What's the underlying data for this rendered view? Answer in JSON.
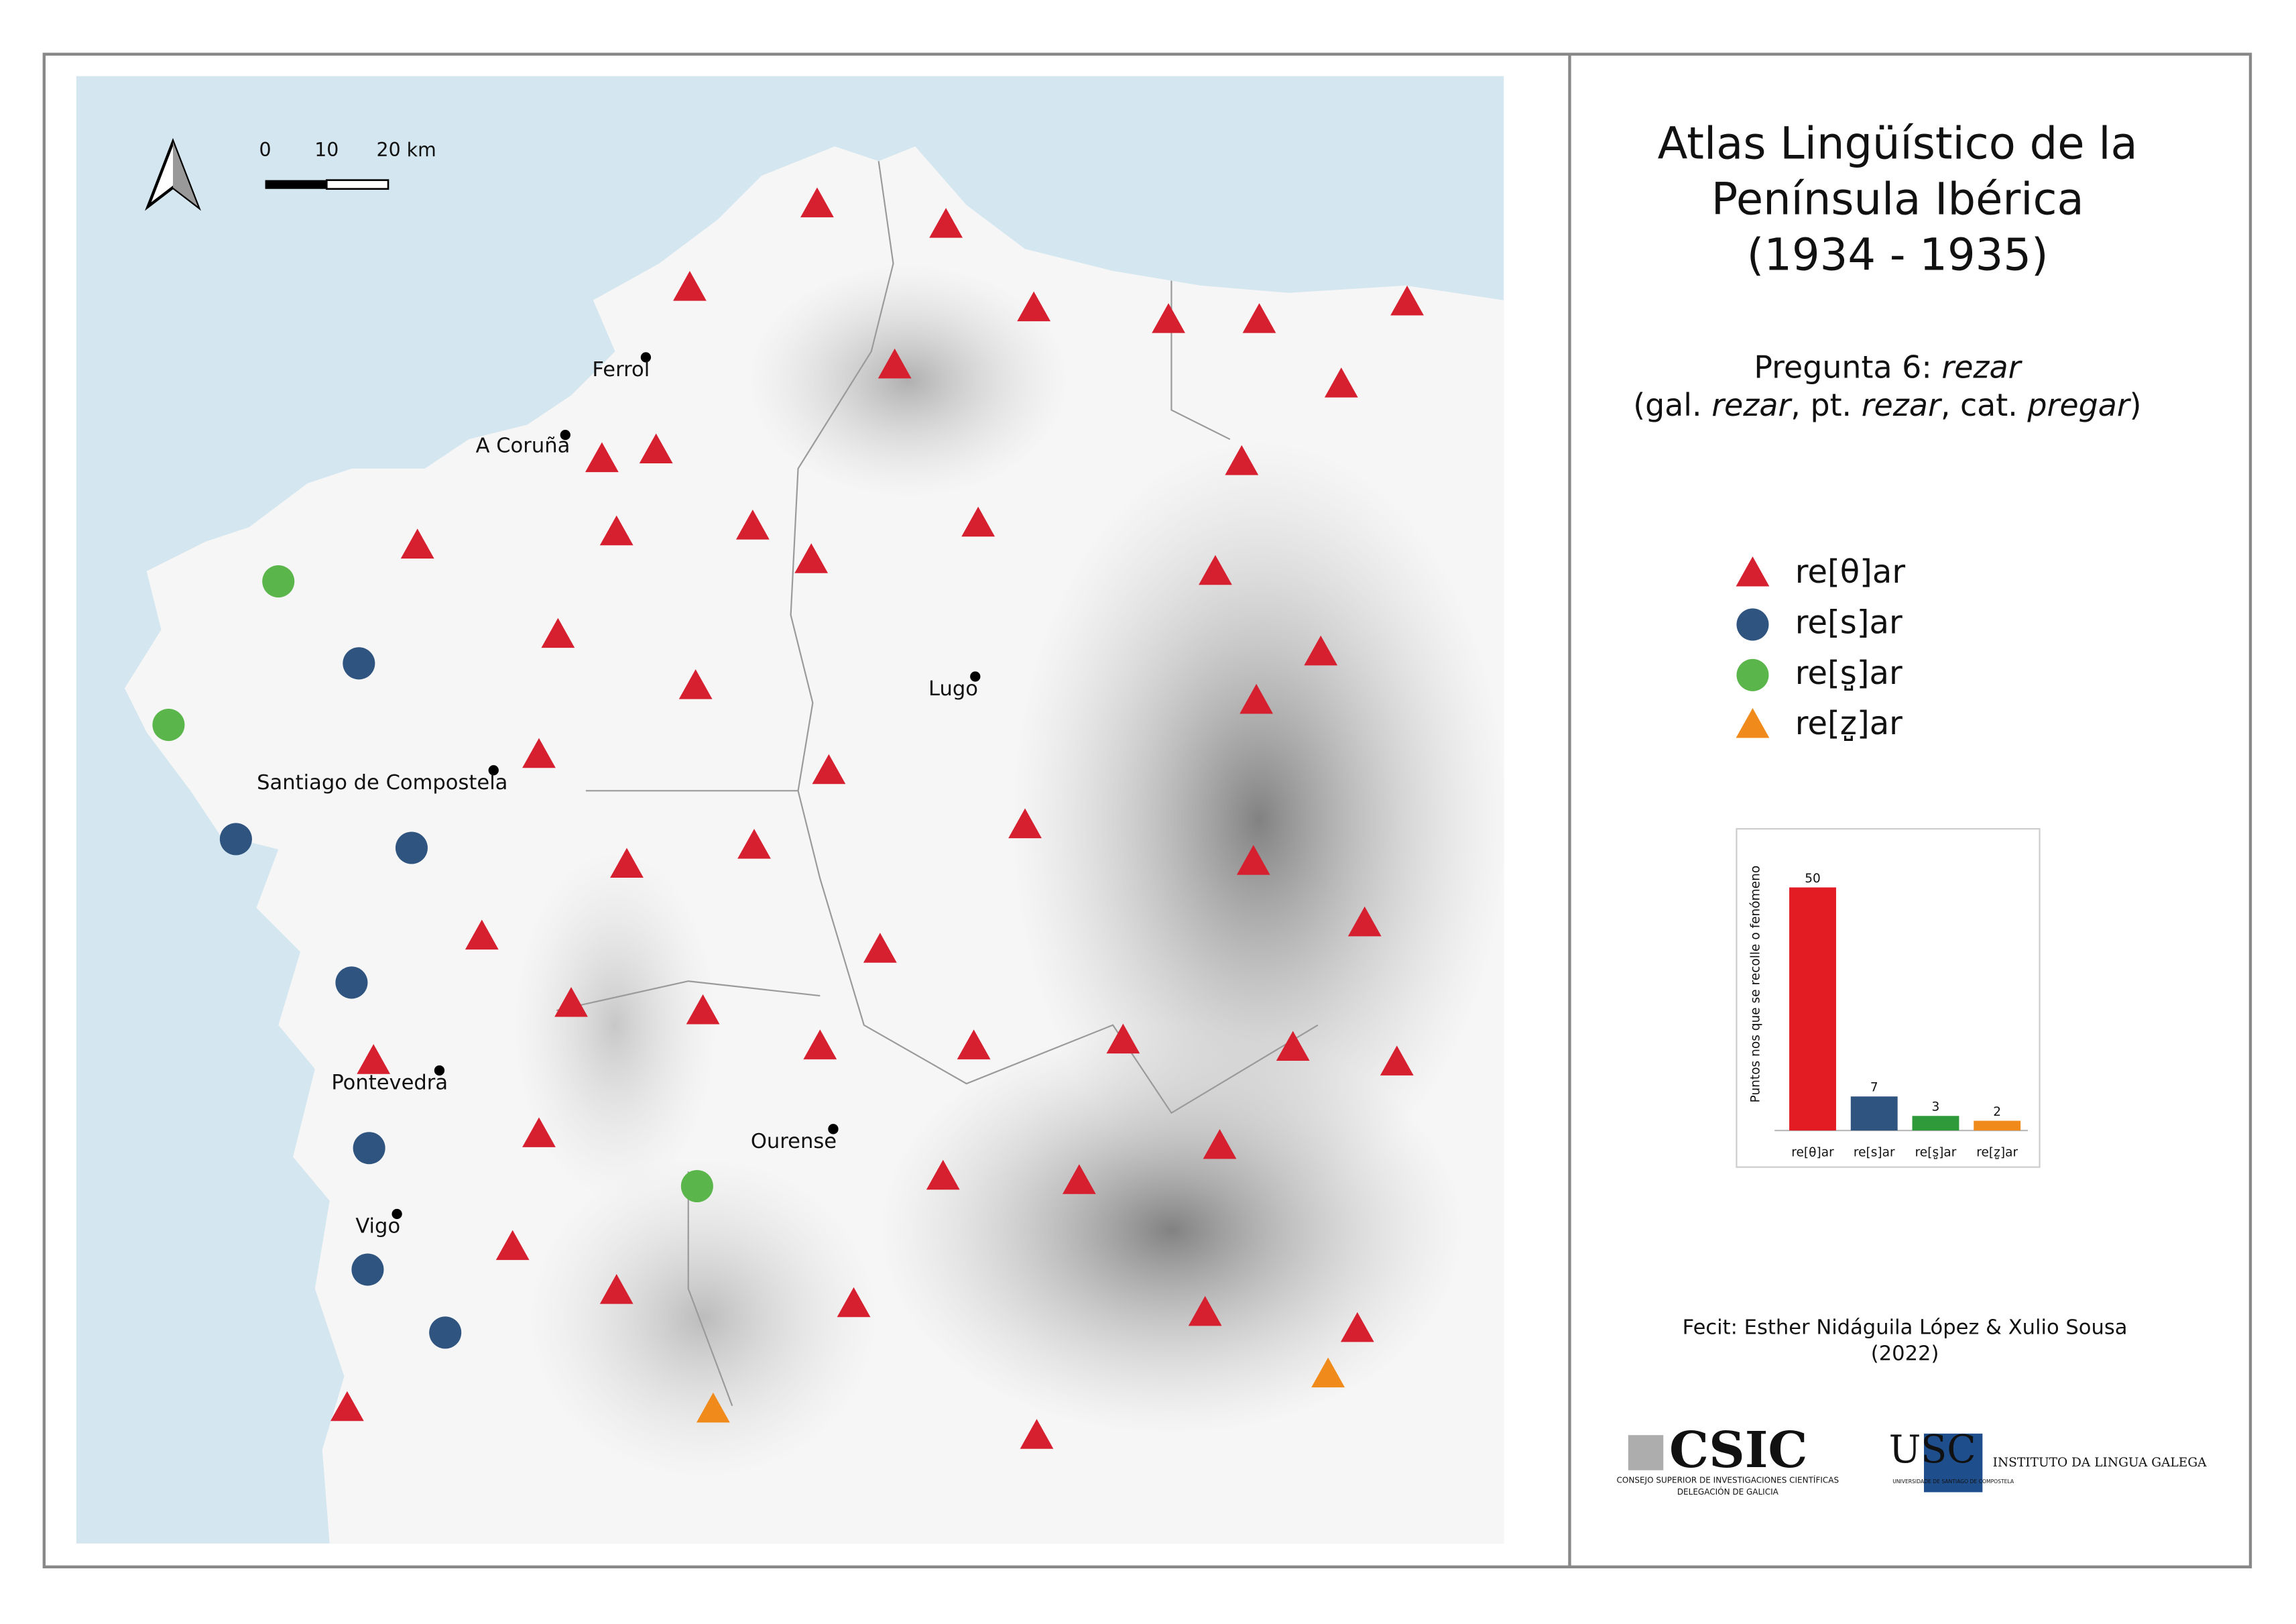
{
  "title": [
    "Atlas Lingüístico de la",
    "Península Ibérica",
    "(1934 - 1935)"
  ],
  "question": [
    {
      "text": "Pregunta 6: ",
      "italic": false
    },
    {
      "text": "rezar",
      "italic": true
    }
  ],
  "gloss": [
    {
      "text": "(gal. ",
      "italic": false
    },
    {
      "text": "rezar",
      "italic": true
    },
    {
      "text": ", pt. ",
      "italic": false
    },
    {
      "text": "rezar",
      "italic": true
    },
    {
      "text": ", cat. ",
      "italic": false
    },
    {
      "text": "pregar",
      "italic": true
    },
    {
      "text": ")",
      "italic": false
    }
  ],
  "legend": [
    {
      "label": "re[θ]ar",
      "color": "#d7202f",
      "shape": "triangle"
    },
    {
      "label": "re[s]ar",
      "color": "#2f5480",
      "shape": "circle"
    },
    {
      "label": "re[s̺]ar",
      "color": "#5ab54a",
      "shape": "circle"
    },
    {
      "label": "re[z̺]ar",
      "color": "#f08a1a",
      "shape": "triangle"
    }
  ],
  "cities": [
    "Ferrol",
    "A Coruña",
    "Lugo",
    "Santiago de Compostela",
    "Pontevedra",
    "Ourense",
    "Vigo"
  ],
  "scale_bar": {
    "ticks": [
      0,
      10,
      {
        "value": 20,
        "label": "20 km"
      }
    ]
  },
  "chart_data": {
    "type": "bar",
    "y_label": "Puntos nos que se recolle o fenómeno",
    "categories": [
      "re[θ]ar",
      "re[s]ar",
      "re[s̺]ar",
      "re[z̺]ar"
    ],
    "values": [
      50,
      7,
      3,
      2
    ],
    "colors": [
      "#e31b23",
      "#2f5480",
      "#2f9a3a",
      "#f08a1a"
    ],
    "ylim": [
      0,
      50
    ]
  },
  "credits": [
    "Fecit: Esther Nidáguila López & Xulio Sousa",
    "(2022)"
  ],
  "logos": {
    "csic": [
      "CSIC",
      "CONSEJO SUPERIOR DE INVESTIGACIONES CIENTÍFICAS",
      "DELEGACIÓN DE GALICIA"
    ],
    "usc": [
      "USC",
      "UNIVERSIDADE DE SANTIAGO DE COMPOSTELA",
      "INSTITUTO DA LINGUA GALEGA"
    ]
  }
}
